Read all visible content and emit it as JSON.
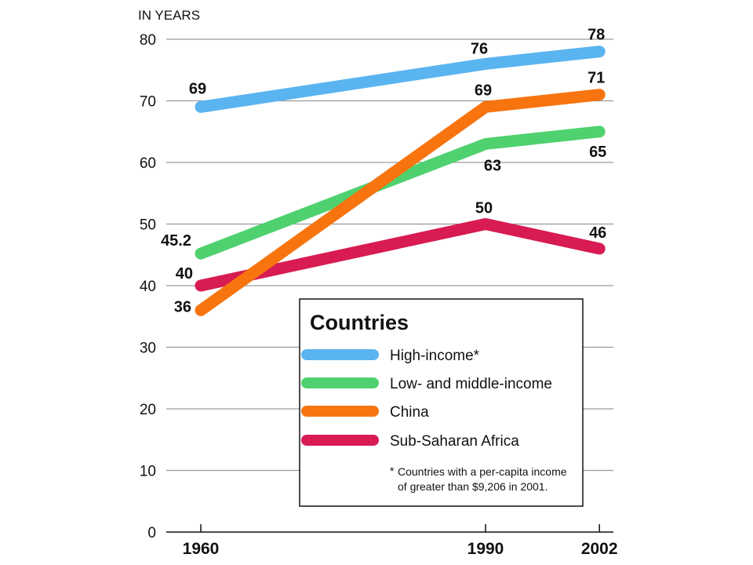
{
  "chart_data": {
    "type": "line",
    "unit_label": "IN YEARS",
    "x": [
      1960,
      1990,
      2002
    ],
    "x_tick_labels": [
      "1960",
      "1990",
      "2002"
    ],
    "ylim": [
      0,
      80
    ],
    "y_ticks": [
      0,
      10,
      20,
      30,
      40,
      50,
      60,
      70,
      80
    ],
    "grid": true,
    "series": [
      {
        "name": "High-income*",
        "color": "#5ab4f0",
        "values": [
          69,
          76,
          78
        ],
        "labels": [
          "69",
          "76",
          "78"
        ]
      },
      {
        "name": "Low- and middle-income",
        "color": "#4fd16f",
        "values": [
          45.2,
          63,
          65
        ],
        "labels": [
          "45.2",
          "63",
          "65"
        ]
      },
      {
        "name": "China",
        "color": "#f7740f",
        "values": [
          36,
          69,
          71
        ],
        "labels": [
          "36",
          "69",
          "71"
        ]
      },
      {
        "name": "Sub-Saharan Africa",
        "color": "#d81b52",
        "values": [
          40,
          50,
          46
        ],
        "labels": [
          "40",
          "50",
          "46"
        ]
      }
    ],
    "legend": {
      "title": "Countries",
      "placement": "bottom-right",
      "footnote_mark": "*",
      "footnote_lines": [
        "Countries with a per-capita income",
        "of greater than $9,206 in 2001."
      ]
    }
  }
}
